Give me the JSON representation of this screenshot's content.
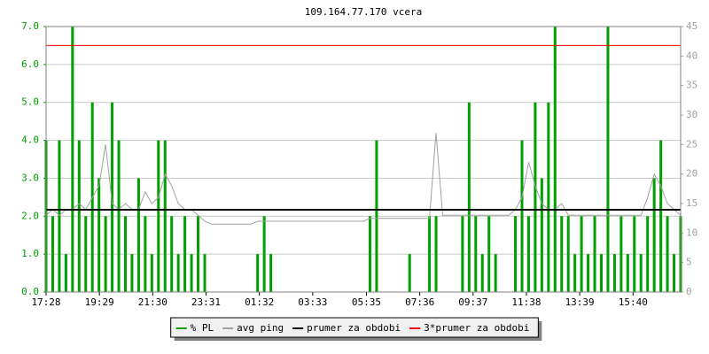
{
  "chart_data": {
    "type": "bar-line",
    "title": "109.164.77.170 vcera",
    "x": [
      0,
      15,
      30,
      45,
      60,
      75,
      90,
      105,
      120,
      135,
      150,
      165,
      180,
      195,
      210,
      225,
      240,
      255,
      270,
      285,
      300,
      315,
      330,
      345,
      360,
      375,
      390,
      405,
      420,
      435,
      450,
      465,
      480,
      495,
      510,
      525,
      540,
      555,
      570,
      585,
      600,
      615,
      630,
      645,
      660,
      675,
      690,
      705,
      720,
      735,
      750,
      765,
      780,
      795,
      810,
      825,
      840,
      855,
      870,
      885,
      900,
      915,
      930,
      945,
      960,
      975,
      990,
      1005,
      1020,
      1035,
      1050,
      1065,
      1080,
      1095,
      1110,
      1125,
      1140,
      1155,
      1170,
      1185,
      1200,
      1215,
      1230,
      1245,
      1260,
      1275,
      1290,
      1305,
      1320,
      1335,
      1350,
      1365,
      1380,
      1395,
      1410,
      1425,
      1440
    ],
    "series": [
      {
        "name": "% PL",
        "color": "#00a000",
        "style": "bar",
        "values": [
          4,
          2,
          4,
          1,
          7,
          4,
          2,
          5,
          3,
          2,
          5,
          4,
          2,
          1,
          3,
          2,
          1,
          4,
          4,
          2,
          1,
          2,
          1,
          2,
          1,
          0,
          0,
          0,
          0,
          0,
          0,
          0,
          1,
          2,
          1,
          0,
          0,
          0,
          0,
          0,
          0,
          0,
          0,
          0,
          0,
          0,
          0,
          0,
          0,
          2,
          4,
          0,
          0,
          0,
          0,
          1,
          0,
          0,
          2,
          2,
          0,
          0,
          0,
          2,
          5,
          2,
          1,
          2,
          1,
          0,
          0,
          2,
          4,
          2,
          5,
          3,
          5,
          7,
          2,
          2,
          1,
          2,
          1,
          2,
          1,
          7,
          1,
          2,
          1,
          2,
          1,
          2,
          3,
          4,
          2,
          1,
          2
        ]
      },
      {
        "name": "avg ping",
        "color": "#a0a0a0",
        "style": "line",
        "axis": "y2",
        "values": [
          13,
          14,
          13,
          14,
          14,
          15,
          14,
          16,
          18,
          25,
          15,
          14,
          15,
          14,
          14,
          17,
          15,
          16,
          20,
          18,
          15,
          14,
          14,
          13,
          12,
          11.5,
          11.5,
          11.5,
          11.5,
          11.5,
          11.5,
          11.5,
          12,
          12,
          12,
          12,
          12,
          12,
          12,
          12,
          12,
          12,
          12,
          12,
          12,
          12,
          12,
          12,
          12,
          12.5,
          12.5,
          12.5,
          12.5,
          12.5,
          12.5,
          12.5,
          12.5,
          12.5,
          12.5,
          27,
          13,
          13,
          13,
          13,
          13,
          13,
          13,
          13,
          13,
          13,
          13,
          14,
          16,
          22,
          18,
          15,
          14,
          14,
          15,
          13,
          13,
          13,
          13,
          13,
          13,
          13,
          13,
          13,
          13,
          13,
          13,
          16,
          20,
          18,
          15,
          14,
          13
        ]
      },
      {
        "name": "prumer za obdobi",
        "color": "#000000",
        "style": "hline",
        "value": 2.17
      },
      {
        "name": "3*prumer za obdobi",
        "color": "#ff0000",
        "style": "hline",
        "value": 6.5
      }
    ],
    "xlim": [
      0,
      1440
    ],
    "xticks": [
      {
        "value": 0,
        "label": "17:28"
      },
      {
        "value": 121,
        "label": "19:29"
      },
      {
        "value": 242,
        "label": "21:30"
      },
      {
        "value": 363,
        "label": "23:31"
      },
      {
        "value": 484,
        "label": "01:32"
      },
      {
        "value": 605,
        "label": "03:33"
      },
      {
        "value": 727,
        "label": "05:35"
      },
      {
        "value": 848,
        "label": "07:36"
      },
      {
        "value": 969,
        "label": "09:37"
      },
      {
        "value": 1090,
        "label": "11:38"
      },
      {
        "value": 1211,
        "label": "13:39"
      },
      {
        "value": 1332,
        "label": "15:40"
      }
    ],
    "ylim": [
      0,
      7
    ],
    "yticks": [
      {
        "value": 0,
        "label": "0.0"
      },
      {
        "value": 1,
        "label": "1.0"
      },
      {
        "value": 2,
        "label": "2.0"
      },
      {
        "value": 3,
        "label": "3.0"
      },
      {
        "value": 4,
        "label": "4.0"
      },
      {
        "value": 5,
        "label": "5.0"
      },
      {
        "value": 6,
        "label": "6.0"
      },
      {
        "value": 7,
        "label": "7.0"
      }
    ],
    "y2lim": [
      0,
      45
    ],
    "y2ticks": [
      0,
      5,
      10,
      15,
      20,
      25,
      30,
      35,
      40,
      45
    ],
    "grid": true,
    "legend": "bottom"
  }
}
